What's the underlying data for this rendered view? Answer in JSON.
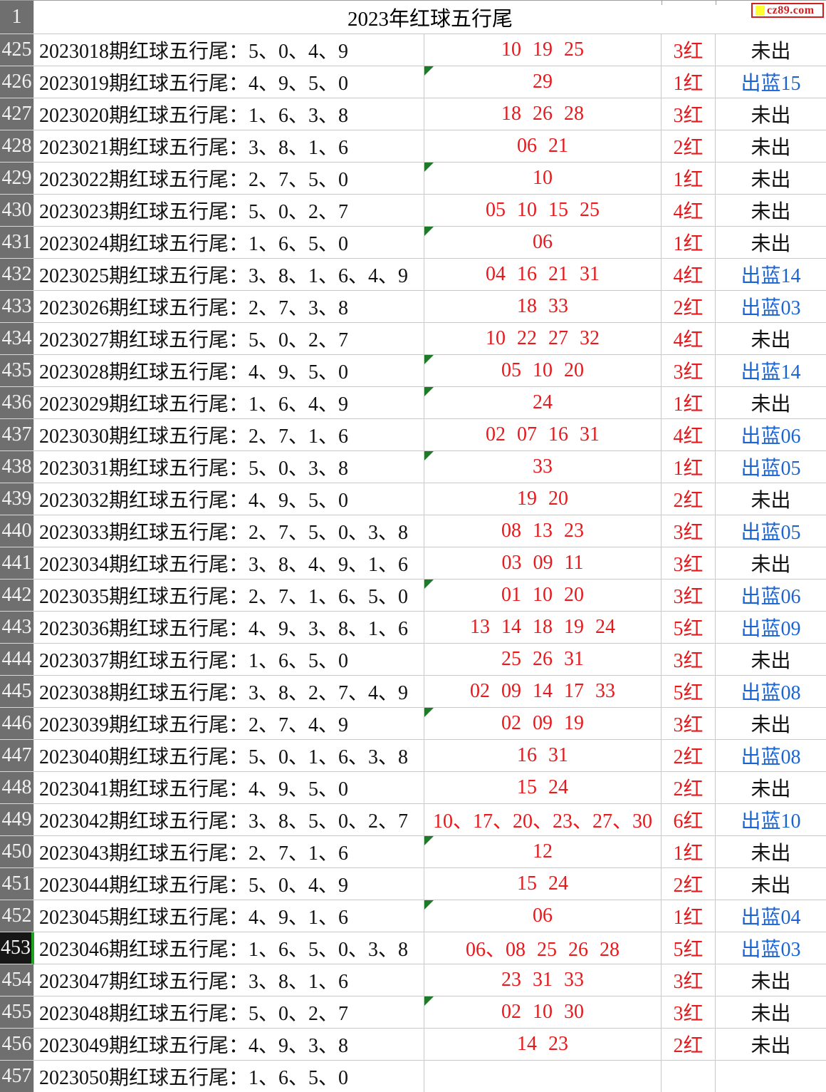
{
  "title": "2023年红球五行尾",
  "corner_label": "1",
  "logo": {
    "text": "cz89.com"
  },
  "colors": {
    "red_text": "#e6191c",
    "blue_text": "#1a64d2",
    "row_header_bg": "#6f6f6f",
    "selected_row_header_bg": "#161616",
    "selection_green": "#21a121",
    "triangle_green": "#1e7a28",
    "logo_red": "#d01f1f",
    "logo_yellow": "#ffff2e",
    "gridline": "#c9c9c9"
  },
  "rows": [
    {
      "num": "425",
      "label": "2023018期红球五行尾：5、0、4、9",
      "balls": "10 19 25",
      "count": "3红",
      "status": "未出",
      "tri": false,
      "sel": false
    },
    {
      "num": "426",
      "label": "2023019期红球五行尾：4、9、5、0",
      "balls": "29",
      "count": "1红",
      "status": "出蓝15",
      "tri": true,
      "sel": false
    },
    {
      "num": "427",
      "label": "2023020期红球五行尾：1、6、3、8",
      "balls": "18 26 28",
      "count": "3红",
      "status": "未出",
      "tri": false,
      "sel": false
    },
    {
      "num": "428",
      "label": "2023021期红球五行尾：3、8、1、6",
      "balls": "06 21",
      "count": "2红",
      "status": "未出",
      "tri": false,
      "sel": false
    },
    {
      "num": "429",
      "label": "2023022期红球五行尾：2、7、5、0",
      "balls": "10",
      "count": "1红",
      "status": "未出",
      "tri": true,
      "sel": false
    },
    {
      "num": "430",
      "label": "2023023期红球五行尾：5、0、2、7",
      "balls": "05 10 15 25",
      "count": "4红",
      "status": "未出",
      "tri": false,
      "sel": false
    },
    {
      "num": "431",
      "label": "2023024期红球五行尾：1、6、5、0",
      "balls": "06",
      "count": "1红",
      "status": "未出",
      "tri": true,
      "sel": false
    },
    {
      "num": "432",
      "label": "2023025期红球五行尾：3、8、1、6、4、9",
      "balls": "04 16 21 31",
      "count": "4红",
      "status": "出蓝14",
      "tri": false,
      "sel": false
    },
    {
      "num": "433",
      "label": "2023026期红球五行尾：2、7、3、8",
      "balls": "18 33",
      "count": "2红",
      "status": "出蓝03",
      "tri": false,
      "sel": false
    },
    {
      "num": "434",
      "label": "2023027期红球五行尾：5、0、2、7",
      "balls": "10 22 27 32",
      "count": "4红",
      "status": "未出",
      "tri": false,
      "sel": false
    },
    {
      "num": "435",
      "label": "2023028期红球五行尾：4、9、5、0",
      "balls": "05 10 20",
      "count": "3红",
      "status": "出蓝14",
      "tri": true,
      "sel": false
    },
    {
      "num": "436",
      "label": "2023029期红球五行尾：1、6、4、9",
      "balls": "24",
      "count": "1红",
      "status": "未出",
      "tri": true,
      "sel": false
    },
    {
      "num": "437",
      "label": "2023030期红球五行尾：2、7、1、6",
      "balls": "02 07 16 31",
      "count": "4红",
      "status": "出蓝06",
      "tri": false,
      "sel": false
    },
    {
      "num": "438",
      "label": "2023031期红球五行尾：5、0、3、8",
      "balls": "33",
      "count": "1红",
      "status": "出蓝05",
      "tri": true,
      "sel": false
    },
    {
      "num": "439",
      "label": "2023032期红球五行尾：4、9、5、0",
      "balls": "19 20",
      "count": "2红",
      "status": "未出",
      "tri": false,
      "sel": false
    },
    {
      "num": "440",
      "label": "2023033期红球五行尾：2、7、5、0、3、8",
      "balls": "08 13 23",
      "count": "3红",
      "status": "出蓝05",
      "tri": false,
      "sel": false
    },
    {
      "num": "441",
      "label": "2023034期红球五行尾：3、8、4、9、1、6",
      "balls": "03 09 11",
      "count": "3红",
      "status": "未出",
      "tri": false,
      "sel": false
    },
    {
      "num": "442",
      "label": "2023035期红球五行尾：2、7、1、6、5、0",
      "balls": "01 10 20",
      "count": "3红",
      "status": "出蓝06",
      "tri": true,
      "sel": false
    },
    {
      "num": "443",
      "label": "2023036期红球五行尾：4、9、3、8、1、6",
      "balls": "13 14 18 19 24",
      "count": "5红",
      "status": "出蓝09",
      "tri": false,
      "sel": false
    },
    {
      "num": "444",
      "label": "2023037期红球五行尾：1、6、5、0",
      "balls": "25 26 31",
      "count": "3红",
      "status": "未出",
      "tri": false,
      "sel": false
    },
    {
      "num": "445",
      "label": "2023038期红球五行尾：3、8、2、7、4、9",
      "balls": "02 09 14 17 33",
      "count": "5红",
      "status": "出蓝08",
      "tri": false,
      "sel": false
    },
    {
      "num": "446",
      "label": "2023039期红球五行尾：2、7、4、9",
      "balls": "02 09 19",
      "count": "3红",
      "status": "未出",
      "tri": true,
      "sel": false
    },
    {
      "num": "447",
      "label": "2023040期红球五行尾：5、0、1、6、3、8",
      "balls": "16 31",
      "count": "2红",
      "status": "出蓝08",
      "tri": false,
      "sel": false
    },
    {
      "num": "448",
      "label": "2023041期红球五行尾：4、9、5、0",
      "balls": "15 24",
      "count": "2红",
      "status": "未出",
      "tri": false,
      "sel": false
    },
    {
      "num": "449",
      "label": "2023042期红球五行尾：3、8、5、0、2、7",
      "balls": "10、17、20、23、27、30",
      "count": "6红",
      "status": "出蓝10",
      "tri": false,
      "sel": false
    },
    {
      "num": "450",
      "label": "2023043期红球五行尾：2、7、1、6",
      "balls": "12",
      "count": "1红",
      "status": "未出",
      "tri": true,
      "sel": false
    },
    {
      "num": "451",
      "label": "2023044期红球五行尾：5、0、4、9",
      "balls": "15 24",
      "count": "2红",
      "status": "未出",
      "tri": false,
      "sel": false
    },
    {
      "num": "452",
      "label": "2023045期红球五行尾：4、9、1、6",
      "balls": "06",
      "count": "1红",
      "status": "出蓝04",
      "tri": true,
      "sel": false
    },
    {
      "num": "453",
      "label": "2023046期红球五行尾：1、6、5、0、3、8",
      "balls": "06、08 25 26 28",
      "count": "5红",
      "status": "出蓝03",
      "tri": false,
      "sel": true
    },
    {
      "num": "454",
      "label": "2023047期红球五行尾：3、8、1、6",
      "balls": "23 31 33",
      "count": "3红",
      "status": "未出",
      "tri": false,
      "sel": false
    },
    {
      "num": "455",
      "label": "2023048期红球五行尾：5、0、2、7",
      "balls": "02 10 30",
      "count": "3红",
      "status": "未出",
      "tri": true,
      "sel": false
    },
    {
      "num": "456",
      "label": "2023049期红球五行尾：4、9、3、8",
      "balls": "14 23",
      "count": "2红",
      "status": "未出",
      "tri": false,
      "sel": false
    },
    {
      "num": "457",
      "label": "2023050期红球五行尾：1、6、5、0",
      "balls": "",
      "count": "",
      "status": "",
      "tri": false,
      "sel": false
    }
  ]
}
